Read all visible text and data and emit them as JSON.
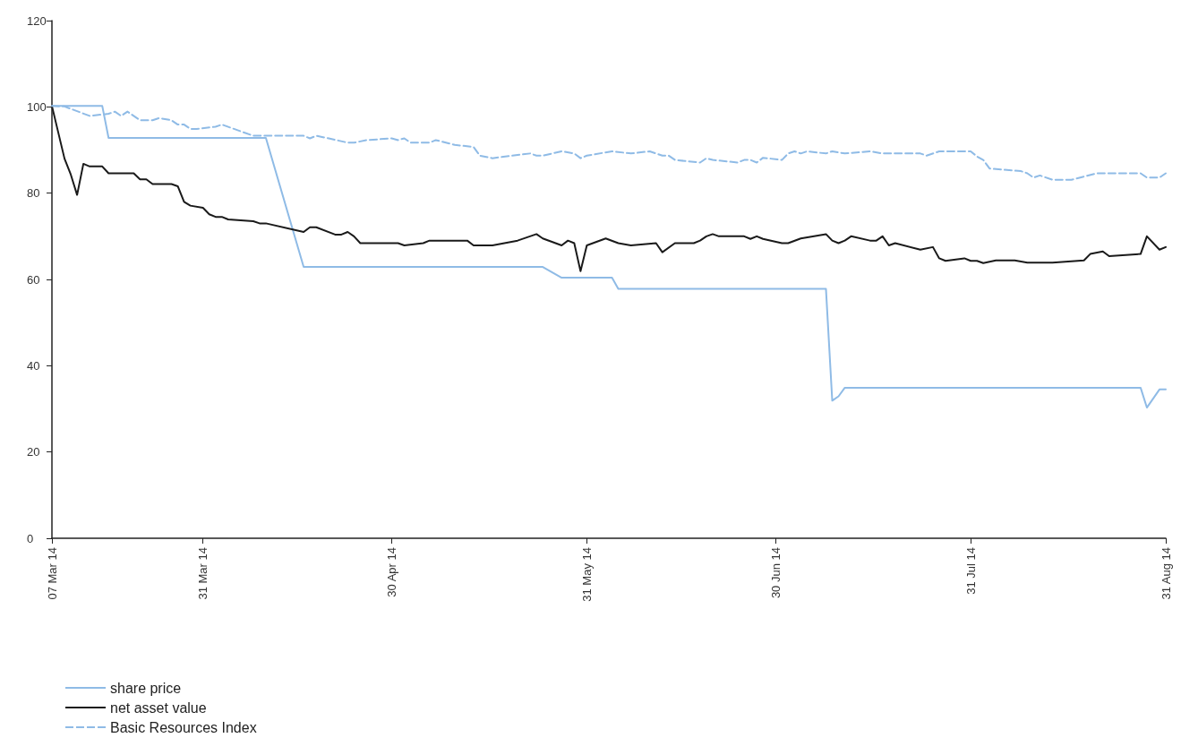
{
  "chart_data": {
    "type": "line",
    "xlim": [
      "2014-03-07",
      "2014-08-31"
    ],
    "xticks": [
      {
        "value": "2014-03-07",
        "label": "07 Mar 14"
      },
      {
        "value": "2014-03-31",
        "label": "31 Mar 14"
      },
      {
        "value": "2014-04-30",
        "label": "30 Apr 14"
      },
      {
        "value": "2014-05-31",
        "label": "31 May 14"
      },
      {
        "value": "2014-06-30",
        "label": "30 Jun 14"
      },
      {
        "value": "2014-07-31",
        "label": "31 Jul 14"
      },
      {
        "value": "2014-08-31",
        "label": "31 Aug 14"
      }
    ],
    "ylim": [
      0,
      120
    ],
    "yticks": [
      0,
      20,
      40,
      60,
      80,
      100,
      120
    ],
    "grid": false,
    "legend": "bottom left",
    "marker": "none",
    "series": [
      {
        "name": "share price",
        "color": "#8fbbe6",
        "line_style": "solid",
        "x": [
          "2014-03-07",
          "2014-03-15",
          "2014-03-16",
          "2014-04-10",
          "2014-04-16",
          "2014-05-24",
          "2014-05-27",
          "2014-06-04",
          "2014-06-05",
          "2014-07-08",
          "2014-07-09",
          "2014-07-10",
          "2014-07-11",
          "2014-08-27",
          "2014-08-28",
          "2014-08-30",
          "2014-08-31"
        ],
        "values": [
          100.2,
          100.2,
          92.8,
          92.8,
          62.9,
          62.9,
          60.4,
          60.4,
          57.8,
          57.8,
          31.9,
          32.9,
          34.9,
          34.9,
          30.3,
          34.5,
          34.5
        ]
      },
      {
        "name": "net asset value",
        "color": "#1a1a1a",
        "line_style": "solid",
        "x": [
          "2014-03-07",
          "2014-03-09",
          "2014-03-10",
          "2014-03-11",
          "2014-03-12",
          "2014-03-13",
          "2014-03-15",
          "2014-03-16",
          "2014-03-20",
          "2014-03-21",
          "2014-03-22",
          "2014-03-23",
          "2014-03-26",
          "2014-03-27",
          "2014-03-28",
          "2014-03-29",
          "2014-03-31",
          "2014-04-01",
          "2014-04-02",
          "2014-04-03",
          "2014-04-04",
          "2014-04-08",
          "2014-04-09",
          "2014-04-10",
          "2014-04-16",
          "2014-04-17",
          "2014-04-18",
          "2014-04-21",
          "2014-04-22",
          "2014-04-23",
          "2014-04-24",
          "2014-04-25",
          "2014-05-01",
          "2014-05-02",
          "2014-05-05",
          "2014-05-06",
          "2014-05-12",
          "2014-05-13",
          "2014-05-16",
          "2014-05-20",
          "2014-05-23",
          "2014-05-24",
          "2014-05-27",
          "2014-05-28",
          "2014-05-29",
          "2014-05-30",
          "2014-05-31",
          "2014-06-03",
          "2014-06-05",
          "2014-06-07",
          "2014-06-11",
          "2014-06-12",
          "2014-06-14",
          "2014-06-17",
          "2014-06-18",
          "2014-06-19",
          "2014-06-20",
          "2014-06-21",
          "2014-06-25",
          "2014-06-26",
          "2014-06-27",
          "2014-06-28",
          "2014-07-01",
          "2014-07-02",
          "2014-07-04",
          "2014-07-08",
          "2014-07-09",
          "2014-07-10",
          "2014-07-11",
          "2014-07-12",
          "2014-07-15",
          "2014-07-16",
          "2014-07-17",
          "2014-07-18",
          "2014-07-19",
          "2014-07-23",
          "2014-07-25",
          "2014-07-26",
          "2014-07-27",
          "2014-07-30",
          "2014-07-31",
          "2014-08-01",
          "2014-08-02",
          "2014-08-04",
          "2014-08-07",
          "2014-08-09",
          "2014-08-13",
          "2014-08-18",
          "2014-08-19",
          "2014-08-21",
          "2014-08-22",
          "2014-08-27",
          "2014-08-28",
          "2014-08-30",
          "2014-08-31"
        ],
        "values": [
          100.2,
          88.0,
          84.3,
          79.6,
          86.8,
          86.2,
          86.2,
          84.6,
          84.6,
          83.2,
          83.2,
          82.1,
          82.1,
          81.6,
          78.0,
          77.1,
          76.6,
          75.1,
          74.5,
          74.5,
          73.9,
          73.5,
          73.0,
          73.0,
          71.0,
          72.1,
          72.1,
          70.4,
          70.4,
          71.0,
          70.0,
          68.4,
          68.4,
          67.9,
          68.4,
          69.0,
          69.0,
          67.9,
          67.9,
          69.0,
          70.5,
          69.5,
          67.9,
          69.0,
          68.4,
          61.9,
          67.9,
          69.5,
          68.4,
          67.9,
          68.4,
          66.3,
          68.4,
          68.4,
          69.0,
          70.0,
          70.5,
          70.0,
          70.0,
          69.4,
          70.0,
          69.4,
          68.4,
          68.4,
          69.5,
          70.5,
          69.0,
          68.4,
          69.0,
          70.0,
          69.0,
          69.0,
          70.0,
          67.9,
          68.4,
          66.9,
          67.5,
          64.9,
          64.3,
          64.9,
          64.3,
          64.3,
          63.8,
          64.4,
          64.4,
          63.9,
          63.9,
          64.4,
          65.9,
          66.5,
          65.4,
          65.9,
          70.0,
          66.9,
          67.5
        ]
      },
      {
        "name": "Basic Resources Index",
        "color": "#8fbbe6",
        "line_style": "dashed",
        "x": [
          "2014-03-07",
          "2014-03-09",
          "2014-03-13",
          "2014-03-16",
          "2014-03-17",
          "2014-03-18",
          "2014-03-19",
          "2014-03-21",
          "2014-03-23",
          "2014-03-24",
          "2014-03-26",
          "2014-03-27",
          "2014-03-28",
          "2014-03-29",
          "2014-03-30",
          "2014-04-02",
          "2014-04-03",
          "2014-04-08",
          "2014-04-16",
          "2014-04-17",
          "2014-04-18",
          "2014-04-20",
          "2014-04-23",
          "2014-04-24",
          "2014-04-26",
          "2014-04-30",
          "2014-05-01",
          "2014-05-02",
          "2014-05-03",
          "2014-05-06",
          "2014-05-07",
          "2014-05-10",
          "2014-05-13",
          "2014-05-14",
          "2014-05-16",
          "2014-05-22",
          "2014-05-23",
          "2014-05-24",
          "2014-05-27",
          "2014-05-29",
          "2014-05-30",
          "2014-05-31",
          "2014-06-04",
          "2014-06-07",
          "2014-06-10",
          "2014-06-12",
          "2014-06-13",
          "2014-06-14",
          "2014-06-18",
          "2014-06-19",
          "2014-06-20",
          "2014-06-24",
          "2014-06-25",
          "2014-06-26",
          "2014-06-27",
          "2014-06-28",
          "2014-07-01",
          "2014-07-02",
          "2014-07-03",
          "2014-07-04",
          "2014-07-05",
          "2014-07-08",
          "2014-07-09",
          "2014-07-11",
          "2014-07-15",
          "2014-07-17",
          "2014-07-23",
          "2014-07-24",
          "2014-07-26",
          "2014-07-31",
          "2014-08-01",
          "2014-08-02",
          "2014-08-03",
          "2014-08-08",
          "2014-08-09",
          "2014-08-10",
          "2014-08-11",
          "2014-08-13",
          "2014-08-16",
          "2014-08-20",
          "2014-08-27",
          "2014-08-28",
          "2014-08-30",
          "2014-08-31"
        ],
        "values": [
          100.2,
          100.1,
          97.9,
          98.4,
          98.9,
          97.9,
          98.9,
          96.9,
          96.9,
          97.4,
          96.9,
          95.9,
          95.9,
          94.9,
          94.9,
          95.4,
          95.9,
          93.3,
          93.3,
          92.7,
          93.3,
          92.7,
          91.7,
          91.7,
          92.3,
          92.7,
          92.3,
          92.7,
          91.7,
          91.7,
          92.3,
          91.2,
          90.7,
          88.7,
          88.1,
          89.2,
          88.7,
          88.7,
          89.7,
          89.2,
          88.1,
          88.7,
          89.7,
          89.2,
          89.7,
          88.7,
          88.7,
          87.7,
          87.1,
          88.1,
          87.7,
          87.1,
          87.7,
          87.7,
          87.1,
          88.2,
          87.7,
          89.2,
          89.7,
          89.2,
          89.7,
          89.2,
          89.7,
          89.2,
          89.7,
          89.2,
          89.2,
          88.7,
          89.7,
          89.7,
          88.5,
          87.7,
          85.7,
          85.1,
          84.6,
          83.6,
          84.1,
          83.1,
          83.1,
          84.6,
          84.6,
          83.6,
          83.6,
          84.6
        ]
      }
    ]
  }
}
